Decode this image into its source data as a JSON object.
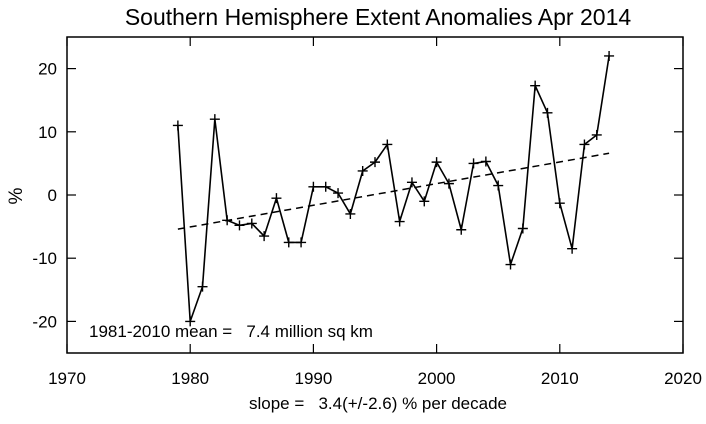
{
  "chart_data": {
    "type": "line",
    "title": "Southern Hemisphere Extent Anomalies Apr 2014",
    "ylabel": "%",
    "xlim": [
      1970,
      2020
    ],
    "ylim": [
      -25,
      25
    ],
    "x_ticks": [
      1970,
      1980,
      1990,
      2000,
      2010,
      2020
    ],
    "y_ticks": [
      -20,
      -10,
      0,
      10,
      20
    ],
    "grid": false,
    "x": [
      1979,
      1980,
      1981,
      1982,
      1983,
      1984,
      1985,
      1986,
      1987,
      1988,
      1989,
      1990,
      1991,
      1992,
      1993,
      1994,
      1995,
      1996,
      1997,
      1998,
      1999,
      2000,
      2001,
      2002,
      2003,
      2004,
      2005,
      2006,
      2007,
      2008,
      2009,
      2010,
      2011,
      2012,
      2013,
      2014
    ],
    "series": [
      {
        "values": [
          11,
          -20,
          -14.5,
          12,
          -4,
          -4.8,
          -4.5,
          -6.5,
          -0.5,
          -7.5,
          -7.5,
          1.3,
          1.3,
          0.3,
          -3,
          3.8,
          5.2,
          8,
          -4.2,
          2,
          -1,
          5.2,
          1.8,
          -5.5,
          5,
          5.3,
          1.5,
          -11,
          -5.3,
          17.3,
          13,
          -1.3,
          -8.5,
          8,
          9.5,
          22
        ],
        "style": "solid",
        "marker": "plus"
      }
    ],
    "trend": {
      "x": [
        1979,
        2014
      ],
      "values": [
        -5.4,
        6.6
      ],
      "style": "dashed"
    },
    "annotations": {
      "mean_text": "1981-2010 mean =   7.4 million sq km",
      "slope_text": "slope =   3.4(+/-2.6) % per decade"
    }
  }
}
